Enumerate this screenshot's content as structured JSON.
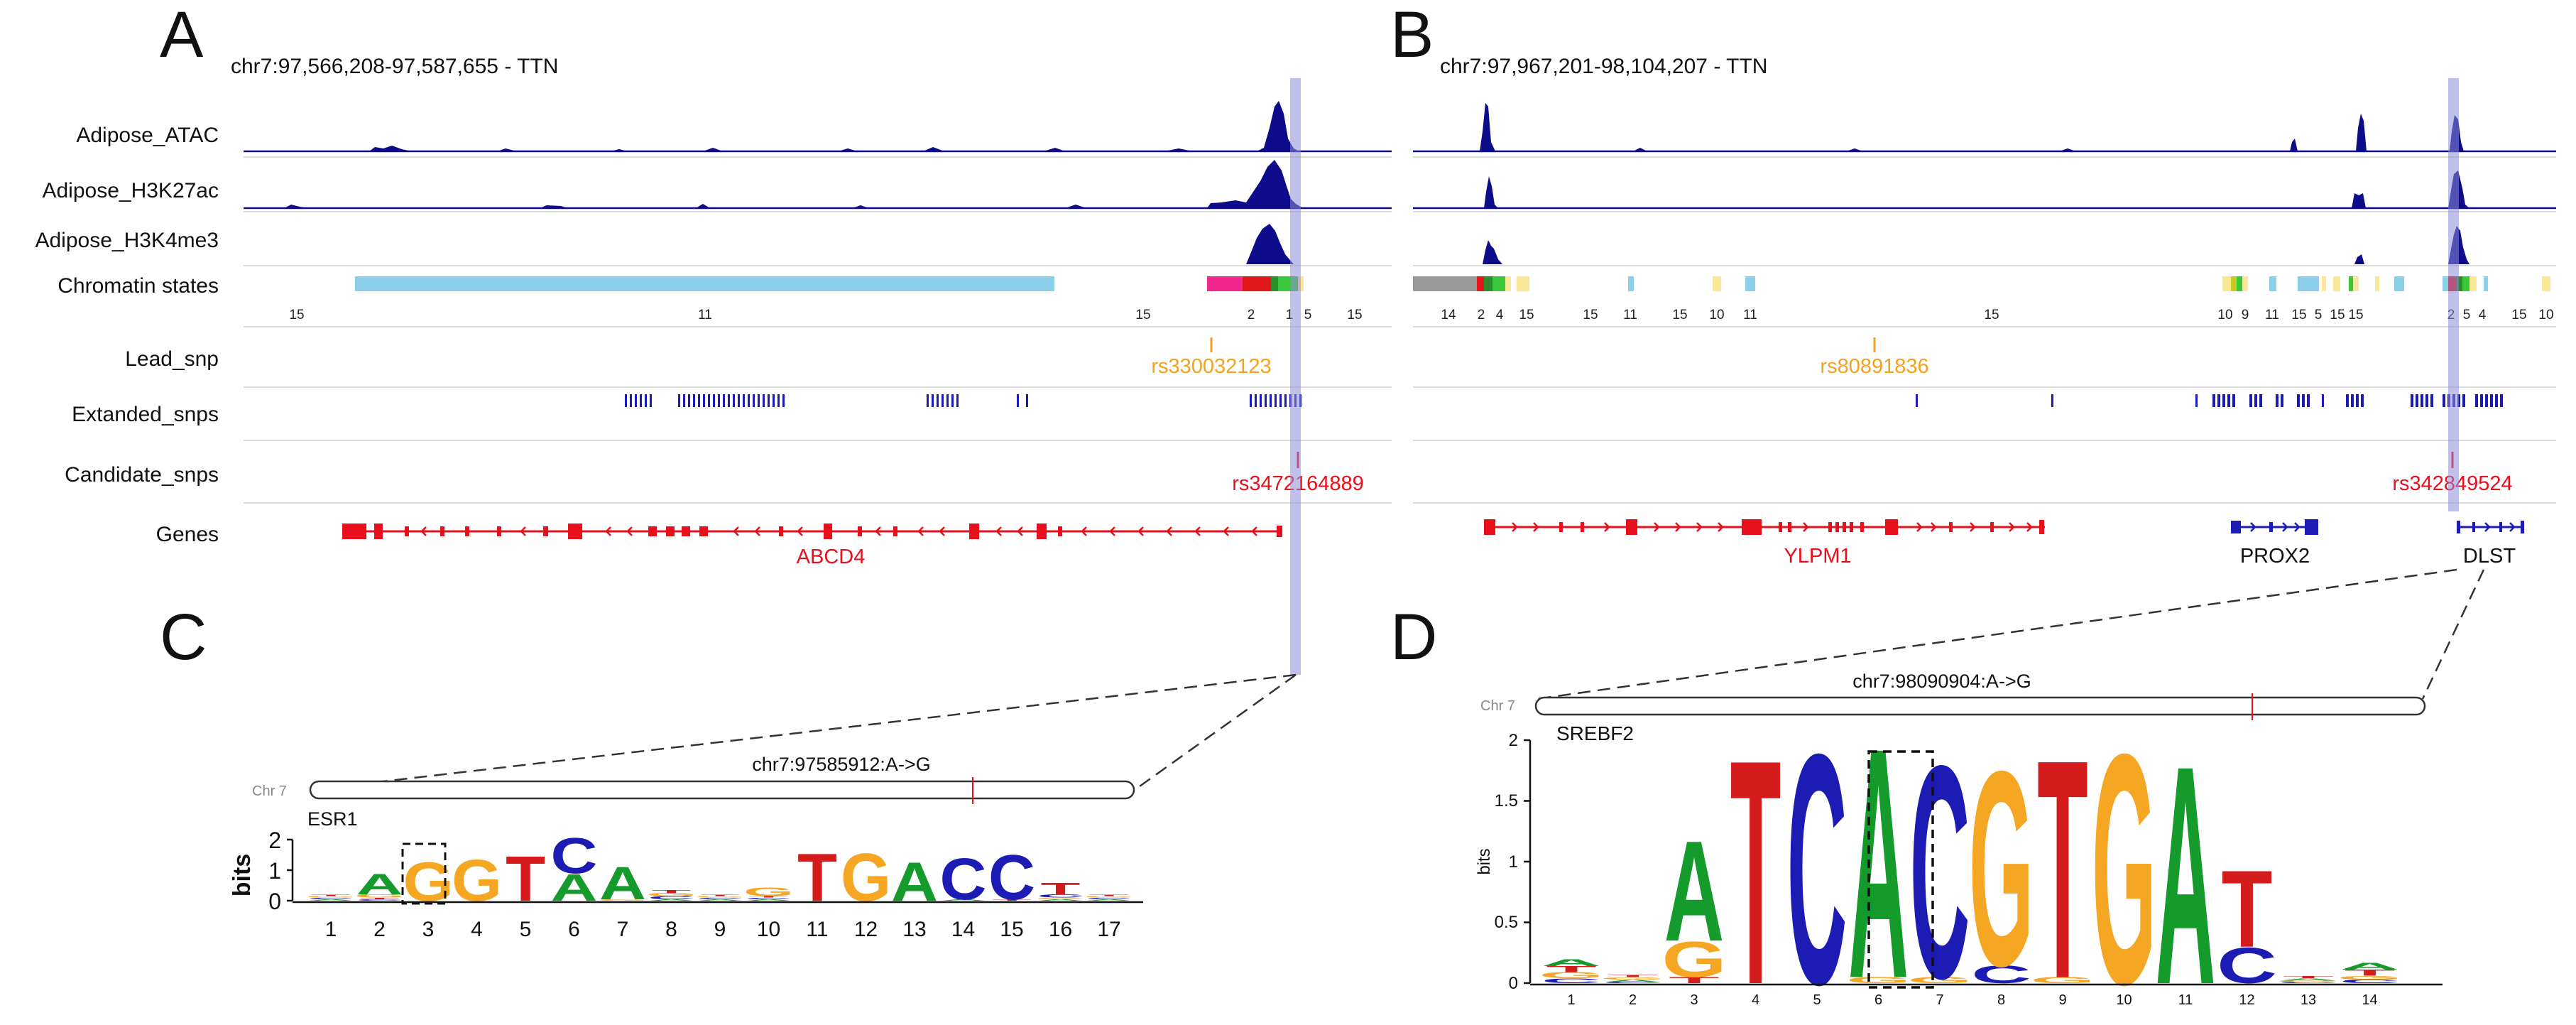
{
  "colors": {
    "track": "#0d0d8c",
    "gene_red": "#e8101c",
    "lead_orange": "#f5a11c",
    "cand_red": "#e8101c",
    "highlight": "#8c8cd8",
    "base_A": "#159a2c",
    "base_C": "#1c1cb4",
    "base_G": "#f5a623",
    "base_T": "#d41c1c",
    "chrom_lightblue": "#8ccfeb",
    "chrom_grey": "#9a9a9a",
    "chrom_yellow": "#fbe79a",
    "chrom_pink": "#f0288c",
    "chrom_red": "#e0181c",
    "chrom_green": "#3cc83c"
  },
  "panels": {
    "A": {
      "letter": "A",
      "region": "chr7:97,566,208-97,587,655 - TTN",
      "track_labels": [
        "Adipose_ATAC",
        "Adipose_H3K27ac",
        "Adipose_H3K4me3",
        "Chromatin states",
        "Lead_snp",
        "Extanded_snps",
        "Candidate_snps",
        "Genes"
      ],
      "state_numbers": [
        "15",
        "11",
        "15",
        "2",
        "1",
        "5",
        "15"
      ],
      "lead_snp": "rs330032123",
      "candidate_snp": "rs3472164889",
      "genes": [
        "ABCD4"
      ]
    },
    "B": {
      "letter": "B",
      "region": "chr7:97,967,201-98,104,207 - TTN",
      "state_numbers": [
        "14",
        "2",
        "4",
        "15",
        "15",
        "11",
        "15",
        "10",
        "11",
        "15",
        "10",
        "9",
        "11",
        "15",
        "5",
        "15",
        "15",
        "2",
        "5",
        "4",
        "15",
        "10"
      ],
      "lead_snp": "rs80891836",
      "candidate_snp": "rs342849524",
      "genes": [
        "YLPM1",
        "PROX2",
        "DLST"
      ]
    },
    "C": {
      "letter": "C",
      "chrom_label": "Chr 7",
      "variant": "chr7:97585912:A->G",
      "motif": "ESR1",
      "ylabel": "bits",
      "yticks": [
        "0",
        "1",
        "2"
      ],
      "positions": [
        "1",
        "2",
        "3",
        "4",
        "5",
        "6",
        "7",
        "8",
        "9",
        "10",
        "11",
        "12",
        "13",
        "14",
        "15",
        "16",
        "17"
      ]
    },
    "D": {
      "letter": "D",
      "chrom_label": "Chr 7",
      "variant": "chr7:98090904:A->G",
      "motif": "SREBF2",
      "ylabel": "bits",
      "yticks": [
        "0",
        "0.5",
        "1",
        "1.5",
        "2"
      ],
      "positions": [
        "1",
        "2",
        "3",
        "4",
        "5",
        "6",
        "7",
        "8",
        "9",
        "10",
        "11",
        "12",
        "13",
        "14"
      ]
    }
  },
  "chart_data": [
    {
      "type": "bar",
      "title": "ESR1",
      "xlabel": "",
      "ylabel": "bits",
      "ylim": [
        0,
        2
      ],
      "categories": [
        "1",
        "2",
        "3",
        "4",
        "5",
        "6",
        "7",
        "8",
        "9",
        "10",
        "11",
        "12",
        "13",
        "14",
        "15",
        "16",
        "17"
      ],
      "series": [
        {
          "name": "A",
          "values": [
            0.05,
            0.7,
            0.0,
            0.0,
            0.0,
            0.9,
            1.1,
            0.05,
            0.05,
            0.05,
            0.0,
            0.0,
            1.3,
            0.05,
            0.0,
            0.05,
            0.05
          ]
        },
        {
          "name": "C",
          "values": [
            0.05,
            0.05,
            0.0,
            0.0,
            0.0,
            1.2,
            0.0,
            0.1,
            0.05,
            0.05,
            0.0,
            0.0,
            0.0,
            1.4,
            1.5,
            0.1,
            0.05
          ]
        },
        {
          "name": "G",
          "values": [
            0.05,
            0.1,
            1.3,
            1.4,
            0.0,
            0.0,
            0.05,
            0.1,
            0.05,
            0.3,
            0.0,
            1.6,
            0.0,
            0.0,
            0.0,
            0.05,
            0.05
          ]
        },
        {
          "name": "T",
          "values": [
            0.05,
            0.05,
            0.0,
            0.0,
            1.5,
            0.0,
            0.0,
            0.1,
            0.05,
            0.05,
            1.6,
            0.0,
            0.0,
            0.0,
            0.05,
            0.4,
            0.05
          ]
        }
      ]
    },
    {
      "type": "bar",
      "title": "SREBF2",
      "xlabel": "",
      "ylabel": "bits",
      "ylim": [
        0,
        2
      ],
      "categories": [
        "1",
        "2",
        "3",
        "4",
        "5",
        "6",
        "7",
        "8",
        "9",
        "10",
        "11",
        "12",
        "13",
        "14"
      ],
      "series": [
        {
          "name": "A",
          "values": [
            0.06,
            0.02,
            0.85,
            0.0,
            0.0,
            1.95,
            0.0,
            0.0,
            0.0,
            0.0,
            1.85,
            0.0,
            0.02,
            0.06
          ]
        },
        {
          "name": "C",
          "values": [
            0.04,
            0.01,
            0.0,
            0.0,
            1.95,
            0.0,
            1.8,
            0.15,
            0.0,
            0.0,
            0.0,
            0.3,
            0.01,
            0.03
          ]
        },
        {
          "name": "G",
          "values": [
            0.05,
            0.02,
            0.3,
            0.0,
            0.0,
            0.05,
            0.05,
            1.65,
            0.05,
            1.95,
            0.0,
            0.0,
            0.01,
            0.03
          ]
        },
        {
          "name": "T",
          "values": [
            0.05,
            0.02,
            0.05,
            1.9,
            0.0,
            0.0,
            0.0,
            0.0,
            1.85,
            0.0,
            0.0,
            0.65,
            0.02,
            0.05
          ]
        }
      ]
    }
  ]
}
